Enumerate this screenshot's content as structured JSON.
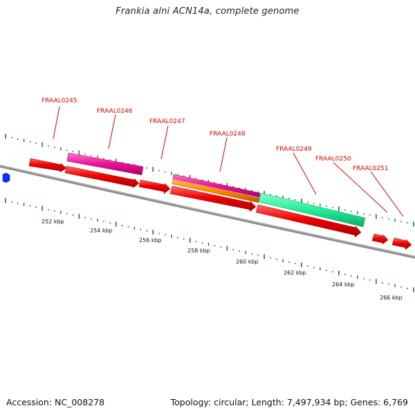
{
  "title": "Frankia alni ACN14a, complete genome",
  "accession": "Accession: NC_008278",
  "summary": "Topology: circular; Length: 7,497,934 bp; Genes: 6,769",
  "colors": {
    "backbone": "#8a8a8a",
    "gene": "#ee0000",
    "pink": "#ee1199",
    "orange": "#ff8800",
    "green": "#22ee99",
    "blue": "#0033ff",
    "tick": "#1a7a1a",
    "label": "#d40000"
  },
  "scale_labels": [
    "252 kbp",
    "254 kbp",
    "256 kbp",
    "258 kbp",
    "260 kbp",
    "262 kbp",
    "264 kbp",
    "266 kbp"
  ],
  "gene_labels": [
    "FRAAL0245",
    "FRAAL0246",
    "FRAAL0247",
    "FRAAL0248",
    "FRAAL0249",
    "FRAAL0250",
    "FRAAL0251"
  ]
}
